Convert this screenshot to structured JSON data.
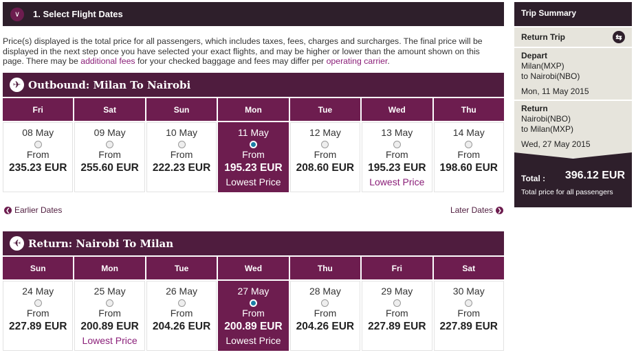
{
  "step": {
    "title": "1. Select Flight Dates",
    "icon": "chevron-down-icon"
  },
  "note": {
    "part1": "Price(s) displayed is the total price for all passengers, which includes taxes, fees, charges and surcharges. The final price will be displayed in the next step once you have selected your exact flights, and may be higher or lower than the amount shown on this page. There may be ",
    "link1": "additional fees",
    "part2": " for your checked baggage and fees may differ per ",
    "link2": "operating carrier",
    "part3": "."
  },
  "outbound": {
    "title": "Outbound: Milan To Nairobi",
    "icon": "plane-depart-icon",
    "days": [
      {
        "day": "Fri",
        "date": "08 May",
        "from": "From",
        "price": "235.23 EUR",
        "note": "",
        "selected": false
      },
      {
        "day": "Sat",
        "date": "09 May",
        "from": "From",
        "price": "255.60 EUR",
        "note": "",
        "selected": false
      },
      {
        "day": "Sun",
        "date": "10 May",
        "from": "From",
        "price": "222.23 EUR",
        "note": "",
        "selected": false
      },
      {
        "day": "Mon",
        "date": "11 May",
        "from": "From",
        "price": "195.23 EUR",
        "note": "Lowest Price",
        "selected": true
      },
      {
        "day": "Tue",
        "date": "12 May",
        "from": "From",
        "price": "208.60 EUR",
        "note": "",
        "selected": false
      },
      {
        "day": "Wed",
        "date": "13 May",
        "from": "From",
        "price": "195.23 EUR",
        "note": "Lowest Price",
        "selected": false
      },
      {
        "day": "Thu",
        "date": "14 May",
        "from": "From",
        "price": "198.60 EUR",
        "note": "",
        "selected": false
      }
    ]
  },
  "nav": {
    "earlier": "Earlier Dates",
    "later": "Later Dates"
  },
  "return": {
    "title": "Return: Nairobi To Milan",
    "icon": "plane-return-icon",
    "days": [
      {
        "day": "Sun",
        "date": "24 May",
        "from": "From",
        "price": "227.89 EUR",
        "note": "",
        "selected": false
      },
      {
        "day": "Mon",
        "date": "25 May",
        "from": "From",
        "price": "200.89 EUR",
        "note": "Lowest Price",
        "selected": false
      },
      {
        "day": "Tue",
        "date": "26 May",
        "from": "From",
        "price": "204.26 EUR",
        "note": "",
        "selected": false
      },
      {
        "day": "Wed",
        "date": "27 May",
        "from": "From",
        "price": "200.89 EUR",
        "note": "Lowest Price",
        "selected": true
      },
      {
        "day": "Thu",
        "date": "28 May",
        "from": "From",
        "price": "204.26 EUR",
        "note": "",
        "selected": false
      },
      {
        "day": "Fri",
        "date": "29 May",
        "from": "From",
        "price": "227.89 EUR",
        "note": "",
        "selected": false
      },
      {
        "day": "Sat",
        "date": "30 May",
        "from": "From",
        "price": "227.89 EUR",
        "note": "",
        "selected": false
      }
    ]
  },
  "summary": {
    "title": "Trip Summary",
    "trip_type": "Return Trip",
    "depart": {
      "label": "Depart",
      "from": "Milan(MXP)",
      "to": "to Nairobi(NBO)",
      "date": "Mon, 11 May 2015"
    },
    "return": {
      "label": "Return",
      "from": "Nairobi(NBO)",
      "to": "to Milan(MXP)",
      "date": "Wed, 27 May 2015"
    },
    "total_label": "Total :",
    "total": "396.12  EUR",
    "total_note": "Total price for all passengers"
  },
  "colors": {
    "dark": "#2e1f2b",
    "section": "#4f1c3e",
    "accent": "#6d1d4f",
    "link": "#8a1e78"
  }
}
